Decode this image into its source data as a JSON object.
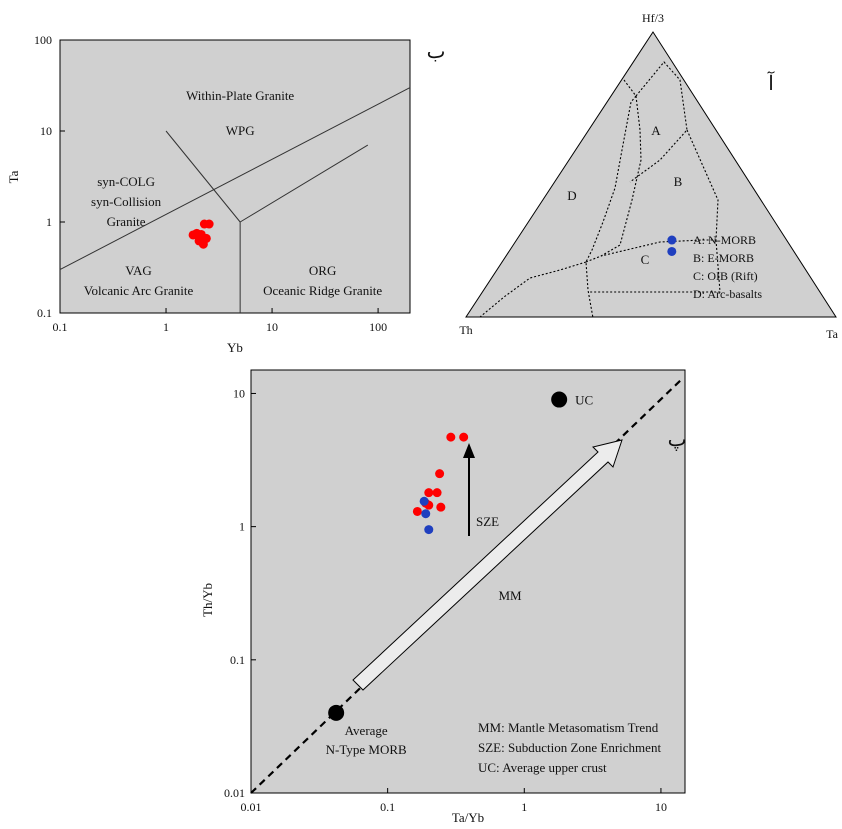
{
  "chart_data": [
    {
      "id": "panel_b",
      "type": "scatter",
      "panel_label": "ب",
      "xlabel": "Yb",
      "ylabel": "Ta",
      "x_scale": "log",
      "y_scale": "log",
      "xlim": [
        0.1,
        200
      ],
      "ylim": [
        0.1,
        100
      ],
      "x_ticks": [
        0.1,
        1,
        10,
        100
      ],
      "x_tick_labels": [
        "0.1",
        "1",
        "10",
        "100"
      ],
      "y_ticks": [
        0.1,
        1,
        10,
        100
      ],
      "y_tick_labels": [
        "0.1",
        "1",
        "10",
        "100"
      ],
      "boundaries": [
        {
          "points": [
            [
              0.1,
              0.3
            ],
            [
              200,
              30
            ]
          ]
        },
        {
          "points": [
            [
              1,
              10
            ],
            [
              5,
              1
            ]
          ]
        },
        {
          "points": [
            [
              5,
              1
            ],
            [
              5,
              0.1
            ]
          ]
        },
        {
          "points": [
            [
              5,
              1
            ],
            [
              80,
              7
            ]
          ]
        }
      ],
      "region_labels": [
        {
          "lines": [
            "Within-Plate Granite"
          ],
          "at": [
            5,
            22
          ]
        },
        {
          "lines": [
            "WPG"
          ],
          "at": [
            5,
            9
          ]
        },
        {
          "lines": [
            "syn-COLG",
            "syn-Collision",
            "Granite"
          ],
          "at": [
            0.42,
            2.5
          ]
        },
        {
          "lines": [
            "VAG",
            "Volcanic Arc Granite"
          ],
          "at": [
            0.55,
            0.26
          ]
        },
        {
          "lines": [
            "ORG",
            "Oceanic Ridge Granite"
          ],
          "at": [
            30,
            0.26
          ]
        }
      ],
      "series": [
        {
          "color": "#ff0000",
          "points": [
            [
              1.8,
              0.72
            ],
            [
              1.95,
              0.75
            ],
            [
              2.05,
              0.68
            ],
            [
              2.15,
              0.73
            ],
            [
              2.2,
              0.62
            ],
            [
              2.05,
              0.62
            ],
            [
              2.25,
              0.57
            ],
            [
              2.3,
              0.95
            ],
            [
              2.55,
              0.95
            ],
            [
              2.4,
              0.66
            ]
          ]
        }
      ]
    },
    {
      "id": "panel_a",
      "type": "ternary",
      "panel_label": "آ",
      "vertices": {
        "top": "Hf/3",
        "left": "Th",
        "right": "Ta"
      },
      "field_labels": [
        "A",
        "B",
        "C",
        "D"
      ],
      "legend": [
        "A: N-MORB",
        "B: E-MORB",
        "C: OIB (Rift)",
        "D: Arc-basalts"
      ],
      "series": [
        {
          "color": "#1f3fbf",
          "points": [
            [
              0.27,
              0.31,
              0.42
            ],
            [
              0.23,
              0.33,
              0.44
            ]
          ]
        }
      ]
    },
    {
      "id": "panel_p",
      "type": "scatter",
      "panel_label": "پ",
      "xlabel": "Ta/Yb",
      "ylabel": "Th/Yb",
      "x_scale": "log",
      "y_scale": "log",
      "xlim": [
        0.01,
        15
      ],
      "ylim": [
        0.01,
        15
      ],
      "x_ticks": [
        0.01,
        0.1,
        1,
        10
      ],
      "x_tick_labels": [
        "0.01",
        "0.1",
        "1",
        "10"
      ],
      "y_ticks": [
        0.01,
        0.1,
        1,
        10
      ],
      "y_tick_labels": [
        "0.01",
        "0.1",
        "1",
        "10"
      ],
      "reference_points": [
        {
          "name": "UC",
          "x": 1.8,
          "y": 9
        },
        {
          "lines": [
            "Average",
            "N-Type MORB"
          ],
          "x": 0.042,
          "y": 0.04
        }
      ],
      "trend_labels": [
        "MM",
        "SZE"
      ],
      "legend": [
        "MM: Mantle Metasomatism Trend",
        "SZE: Subduction Zone Enrichment",
        "UC: Average upper crust"
      ],
      "series": [
        {
          "color": "#ff0000",
          "points": [
            [
              0.29,
              4.7
            ],
            [
              0.36,
              4.7
            ],
            [
              0.24,
              2.5
            ],
            [
              0.2,
              1.8
            ],
            [
              0.23,
              1.8
            ],
            [
              0.19,
              1.5
            ],
            [
              0.2,
              1.45
            ],
            [
              0.245,
              1.4
            ],
            [
              0.165,
              1.3
            ]
          ]
        },
        {
          "color": "#1f3fbf",
          "points": [
            [
              0.185,
              1.55
            ],
            [
              0.19,
              1.25
            ],
            [
              0.2,
              0.95
            ]
          ]
        }
      ]
    }
  ]
}
